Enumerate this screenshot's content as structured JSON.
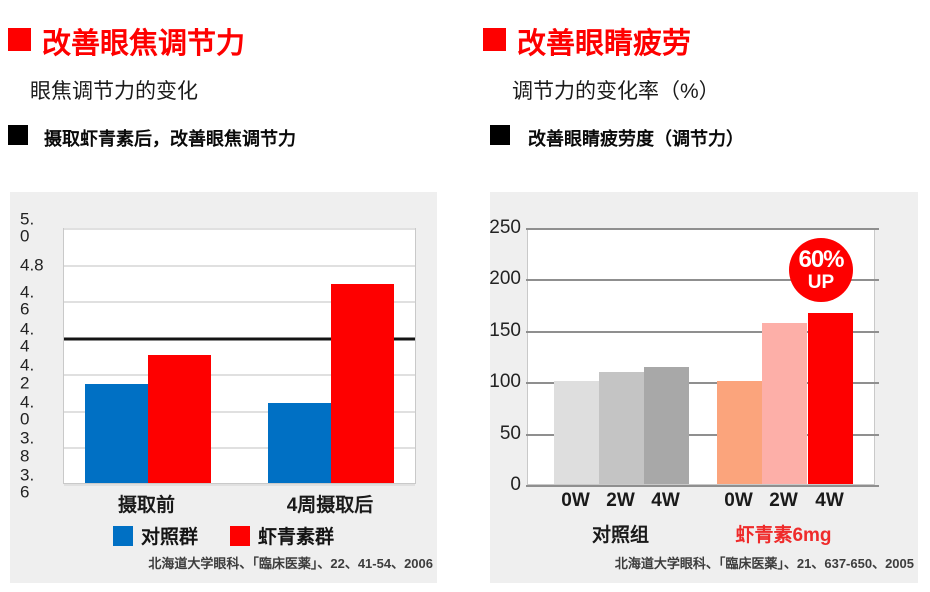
{
  "left": {
    "title": "改善眼焦调节力",
    "subtitle": "眼焦调节力的变化",
    "bullet": "摄取虾青素后，改善眼焦调节力",
    "source": "北海道大学眼科、「臨床医薬」、22、41-54、2006"
  },
  "right": {
    "title": "改善眼睛疲劳",
    "subtitle": "调节力的变化率（%）",
    "bullet": "改善眼睛疲劳度（调节力）",
    "source": "北海道大学眼科、「臨床医薬」、21、637-650、2005"
  },
  "colors": {
    "accent_red": "#fe0000",
    "control_blue": "#0070c4",
    "panel_bg": "#efefef",
    "grid_light": "#e0e0e0",
    "grid_dark": "#8f8f8f",
    "reference_line": "#141414",
    "group2_label_red": "#ef2b2b"
  },
  "chart_data": [
    {
      "id": "left-chart",
      "type": "bar",
      "title": "眼焦调节力的变化",
      "categories": [
        "摄取前",
        "4周摄取后"
      ],
      "series": [
        {
          "name": "对照群",
          "color": "#0070c4",
          "values": [
            4.14,
            4.04
          ]
        },
        {
          "name": "虾青素群",
          "color": "#fe0000",
          "values": [
            4.3,
            4.69
          ]
        }
      ],
      "ylim": [
        3.6,
        5.0
      ],
      "yticks": [
        5.0,
        4.8,
        4.6,
        4.4,
        4.2,
        4.0,
        3.8,
        3.6
      ],
      "ytick_labels": [
        "5.\n0",
        "4.8",
        "4.\n6",
        "4.\n4",
        "4.\n2",
        "4.\n0",
        "3.\n8",
        "3.\n6"
      ],
      "reference_line": 4.4,
      "grid": true,
      "legend_position": "bottom"
    },
    {
      "id": "right-chart",
      "type": "bar",
      "title": "调节力的变化率（%）",
      "categories": [
        "0W",
        "2W",
        "4W",
        "0W",
        "2W",
        "4W"
      ],
      "values": [
        100,
        109,
        114,
        100,
        157,
        166
      ],
      "bar_colors": [
        "#dedede",
        "#c4c4c4",
        "#a8a8a8",
        "#fba47c",
        "#fdafa8",
        "#fe0000"
      ],
      "groups": [
        {
          "label": "对照组",
          "color": "#1a1a1a",
          "indices": [
            0,
            1,
            2
          ]
        },
        {
          "label": "虾青素6mg",
          "color": "#ef2b2b",
          "indices": [
            3,
            4,
            5
          ]
        }
      ],
      "ylim": [
        0,
        250
      ],
      "yticks": [
        250,
        200,
        150,
        100,
        50,
        0
      ],
      "ytick_labels": [
        "250",
        "200",
        "150",
        "100",
        "50",
        "0"
      ],
      "grid": true,
      "legend_position": "none",
      "annotation": {
        "line1": "60%",
        "line2": "UP",
        "meaning": "60% UP"
      }
    }
  ]
}
